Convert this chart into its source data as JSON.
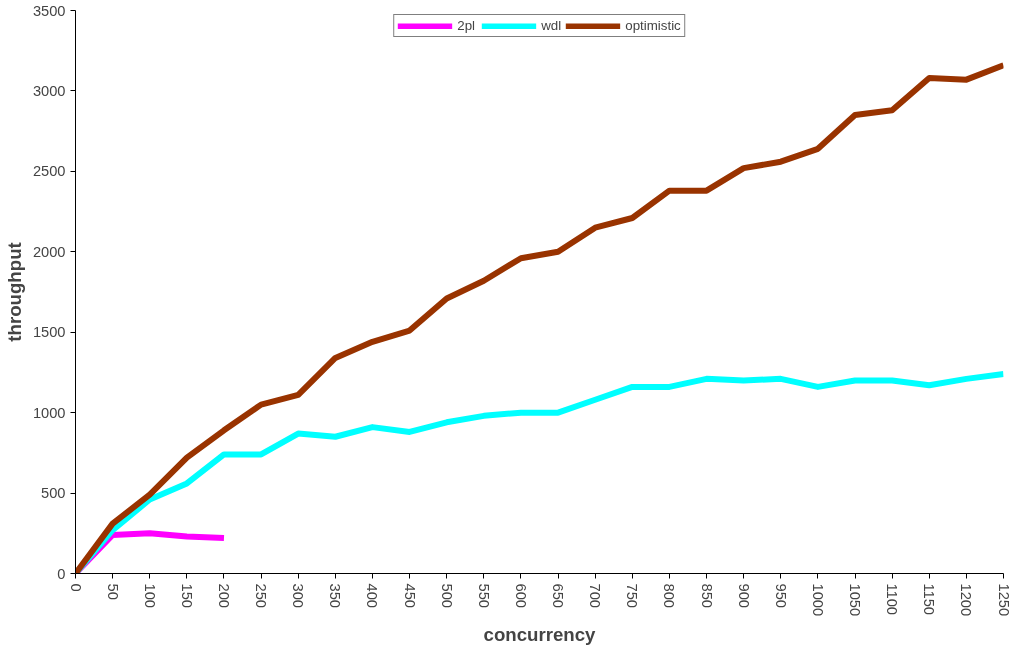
{
  "chart_data": {
    "type": "line",
    "xlabel": "concurrency",
    "ylabel": "throughput",
    "x": [
      0,
      50,
      100,
      150,
      200,
      250,
      300,
      350,
      400,
      450,
      500,
      550,
      600,
      650,
      700,
      750,
      800,
      850,
      900,
      950,
      1000,
      1050,
      1100,
      1150,
      1200,
      1250
    ],
    "series": [
      {
        "name": "2pl",
        "color": "#ff00ff",
        "x": [
          0,
          50,
          100,
          150,
          200
        ],
        "values": [
          0,
          240,
          250,
          230,
          220
        ]
      },
      {
        "name": "wdl",
        "color": "#00ffff",
        "values": [
          0,
          270,
          460,
          560,
          740,
          740,
          870,
          850,
          910,
          880,
          940,
          980,
          1000,
          1000,
          1080,
          1160,
          1160,
          1210,
          1200,
          1210,
          1160,
          1200,
          1200,
          1170,
          1210,
          1240
        ]
      },
      {
        "name": "optimistic",
        "color": "#993300",
        "values": [
          0,
          310,
          490,
          720,
          890,
          1050,
          1110,
          1340,
          1440,
          1510,
          1710,
          1820,
          1960,
          2000,
          2150,
          2210,
          2380,
          2380,
          2520,
          2560,
          2640,
          2850,
          2880,
          3080,
          3070,
          3160
        ]
      }
    ],
    "xlim": [
      0,
      1250
    ],
    "xticks": [
      0,
      50,
      100,
      150,
      200,
      250,
      300,
      350,
      400,
      450,
      500,
      550,
      600,
      650,
      700,
      750,
      800,
      850,
      900,
      950,
      1000,
      1050,
      1100,
      1150,
      1200,
      1250
    ],
    "ylim": [
      0,
      3500
    ],
    "yticks": [
      0,
      500,
      1000,
      1500,
      2000,
      2500,
      3000,
      3500
    ],
    "grid": false,
    "legend": "top",
    "marker": "none",
    "line_style": "solid"
  }
}
